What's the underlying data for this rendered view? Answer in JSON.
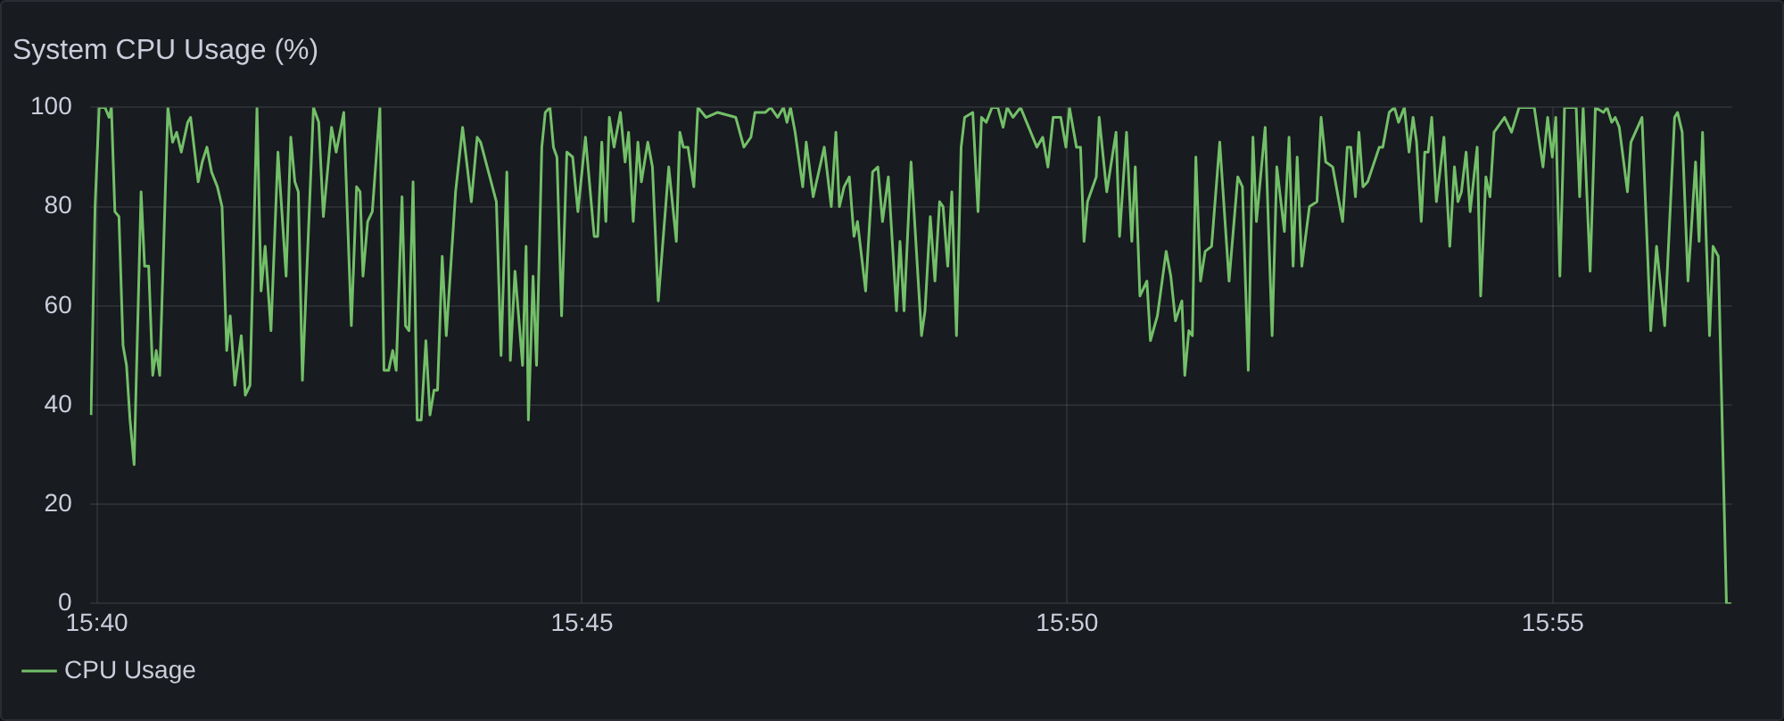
{
  "chart_data": {
    "type": "line",
    "title": "System CPU Usage (%)",
    "x": [
      15.6657,
      15.6664,
      15.6671,
      15.6681,
      15.6688,
      15.6692,
      15.6698,
      15.6705,
      15.6712,
      15.6718,
      15.6724,
      15.6731,
      15.6743,
      15.6749,
      15.6756,
      15.6763,
      15.6769,
      15.6775,
      15.6789,
      15.6797,
      15.6804,
      15.6812,
      15.6823,
      15.6828,
      15.6841,
      15.6848,
      15.6856,
      15.6864,
      15.6874,
      15.6882,
      15.689,
      15.6896,
      15.6904,
      15.6915,
      15.6922,
      15.693,
      15.6942,
      15.6949,
      15.6956,
      15.6966,
      15.6978,
      15.6992,
      15.7,
      15.7007,
      15.7013,
      15.702,
      15.7039,
      15.7048,
      15.7056,
      15.707,
      15.7078,
      15.7091,
      15.7104,
      15.7113,
      15.7119,
      15.7124,
      15.7132,
      15.714,
      15.7153,
      15.716,
      15.7168,
      15.7175,
      15.7181,
      15.7191,
      15.7197,
      15.7203,
      15.721,
      15.7217,
      15.7224,
      15.7232,
      15.7239,
      15.7246,
      15.7252,
      15.726,
      15.7267,
      15.7283,
      15.7295,
      15.731,
      15.732,
      15.7326,
      15.7353,
      15.7361,
      15.7371,
      15.7377,
      15.7385,
      15.7398,
      15.7404,
      15.7408,
      15.7416,
      15.7422,
      15.7431,
      15.7437,
      15.7445,
      15.7451,
      15.7457,
      15.7465,
      15.7474,
      15.7484,
      15.7493,
      15.7506,
      15.7521,
      15.7527,
      15.7534,
      15.7541,
      15.7547,
      15.7555,
      15.7566,
      15.7574,
      15.758,
      15.7588,
      15.7596,
      15.7602,
      15.7613,
      15.7621,
      15.7631,
      15.7649,
      15.7662,
      15.7668,
      15.7674,
      15.7682,
      15.7692,
      15.7699,
      15.7713,
      15.7733,
      15.7764,
      15.7778,
      15.779,
      15.7797,
      15.7815,
      15.7824,
      15.7836,
      15.7846,
      15.7852,
      15.7858,
      15.7866,
      15.7879,
      15.7885,
      15.7897,
      15.7916,
      15.7928,
      15.7936,
      15.7942,
      15.795,
      15.7959,
      15.7967,
      15.7973,
      15.7987,
      15.7999,
      15.8008,
      15.8016,
      15.8026,
      15.804,
      15.8046,
      15.8053,
      15.8065,
      15.8083,
      15.8089,
      15.8098,
      15.8106,
      15.8114,
      15.812,
      15.8128,
      15.8135,
      15.8143,
      15.8151,
      15.8157,
      15.8171,
      15.818,
      15.8186,
      15.8194,
      15.8204,
      15.8214,
      15.8223,
      15.823,
      15.824,
      15.8253,
      15.8267,
      15.8281,
      15.8291,
      15.83,
      15.8309,
      15.8322,
      15.8331,
      15.8337,
      15.8349,
      15.8356,
      15.8362,
      15.8368,
      15.8383,
      15.8388,
      15.8401,
      15.8417,
      15.8423,
      15.8435,
      15.8444,
      15.845,
      15.8458,
      15.847,
      15.8476,
      15.8488,
      15.8503,
      15.8511,
      15.8519,
      15.853,
      15.8535,
      15.8542,
      15.8548,
      15.8554,
      15.8562,
      15.857,
      15.8581,
      15.8595,
      15.8611,
      15.8626,
      15.8634,
      15.8644,
      15.8652,
      15.8658,
      15.8673,
      15.8685,
      15.8693,
      15.8706,
      15.8714,
      15.8721,
      15.8728,
      15.8736,
      15.8749,
      15.8762,
      15.8769,
      15.8777,
      15.8789,
      15.8806,
      15.8814,
      15.882,
      15.8828,
      15.8834,
      15.8841,
      15.8849,
      15.8869,
      15.8875,
      15.8886,
      15.8895,
      15.8902,
      15.8912,
      15.892,
      15.8927,
      15.8933,
      15.8941,
      15.8947,
      15.8953,
      15.8959,
      15.8967,
      15.898,
      15.899,
      15.8998,
      15.9004,
      15.901,
      15.9018,
      15.9025,
      15.9037,
      15.9043,
      15.9052,
      15.9059,
      15.9066,
      15.9084,
      15.9096,
      15.9109,
      15.9135,
      15.915,
      15.9158,
      15.9166,
      15.9172,
      15.9179,
      15.9187,
      15.9207,
      15.9213,
      15.9219,
      15.9231,
      15.924,
      15.9254,
      15.926,
      15.9268,
      15.9274,
      15.9281,
      15.9295,
      15.9301,
      15.932,
      15.9335,
      15.9345,
      15.9359,
      15.9376,
      15.9381,
      15.9389,
      15.9399,
      15.9412,
      15.9418,
      15.9424,
      15.9436,
      15.9442,
      15.9451,
      15.9465,
      15.9473
    ],
    "series": [
      {
        "name": "CPU Usage",
        "color": "#73bf69",
        "values": [
          38,
          80,
          100,
          100,
          98,
          100,
          79,
          78,
          52,
          48,
          37,
          28,
          83,
          68,
          68,
          46,
          51,
          46,
          100,
          93,
          95,
          91,
          97,
          98,
          85,
          89,
          92,
          87,
          84,
          80,
          51,
          58,
          44,
          54,
          42,
          44,
          100,
          63,
          72,
          55,
          91,
          66,
          94,
          85,
          83,
          45,
          100,
          97,
          78,
          96,
          91,
          99,
          56,
          84,
          83,
          66,
          77,
          79,
          100,
          47,
          47,
          51,
          47,
          82,
          56,
          55,
          85,
          37,
          37,
          53,
          38,
          43,
          43,
          70,
          54,
          83,
          96,
          81,
          94,
          93,
          81,
          50,
          87,
          49,
          67,
          48,
          72,
          37,
          66,
          48,
          92,
          99,
          100,
          92,
          90,
          58,
          91,
          90,
          79,
          94,
          74,
          74,
          93,
          77,
          98,
          92,
          99,
          89,
          95,
          77,
          93,
          85,
          93,
          88,
          61,
          88,
          73,
          95,
          92,
          92,
          84,
          100,
          98,
          99,
          98,
          92,
          94,
          99,
          99,
          100,
          98,
          100,
          97,
          100,
          95,
          84,
          93,
          82,
          92,
          80,
          95,
          80,
          84,
          86,
          74,
          77,
          63,
          87,
          88,
          77,
          86,
          59,
          73,
          59,
          89,
          54,
          59,
          78,
          65,
          81,
          80,
          68,
          83,
          54,
          92,
          98,
          99,
          79,
          98,
          97,
          100,
          100,
          96,
          100,
          98,
          100,
          96,
          92,
          94,
          88,
          98,
          98,
          92,
          100,
          92,
          92,
          73,
          81,
          86,
          98,
          83,
          95,
          74,
          95,
          73,
          88,
          62,
          65,
          53,
          58,
          71,
          66,
          57,
          61,
          46,
          55,
          54,
          90,
          65,
          71,
          72,
          93,
          65,
          86,
          84,
          47,
          94,
          77,
          96,
          54,
          88,
          75,
          94,
          68,
          90,
          68,
          80,
          81,
          98,
          89,
          88,
          77,
          92,
          92,
          82,
          95,
          84,
          85,
          92,
          92,
          99,
          100,
          97,
          100,
          91,
          98,
          93,
          77,
          91,
          91,
          98,
          81,
          94,
          72,
          88,
          81,
          83,
          91,
          79,
          92,
          62,
          86,
          82,
          95,
          98,
          95,
          100,
          100,
          88,
          98,
          90,
          98,
          66,
          100,
          100,
          82,
          100,
          67,
          100,
          99,
          100,
          97,
          98,
          96,
          83,
          93,
          98,
          55,
          72,
          56,
          98,
          99,
          95,
          65,
          89,
          73,
          95,
          54,
          72,
          70,
          0,
          0
        ]
      }
    ],
    "xlim": [
      15.6655,
      15.9475
    ],
    "xticks": [
      {
        "value": 15.6667,
        "label": "15:40"
      },
      {
        "value": 15.75,
        "label": "15:45"
      },
      {
        "value": 15.8333,
        "label": "15:50"
      },
      {
        "value": 15.9167,
        "label": "15:55"
      }
    ],
    "ylim": [
      0,
      100
    ],
    "yticks": [
      0,
      20,
      40,
      60,
      80,
      100
    ],
    "grid": true,
    "legend": "bottom left",
    "marker": "none",
    "line_style": "solid"
  }
}
